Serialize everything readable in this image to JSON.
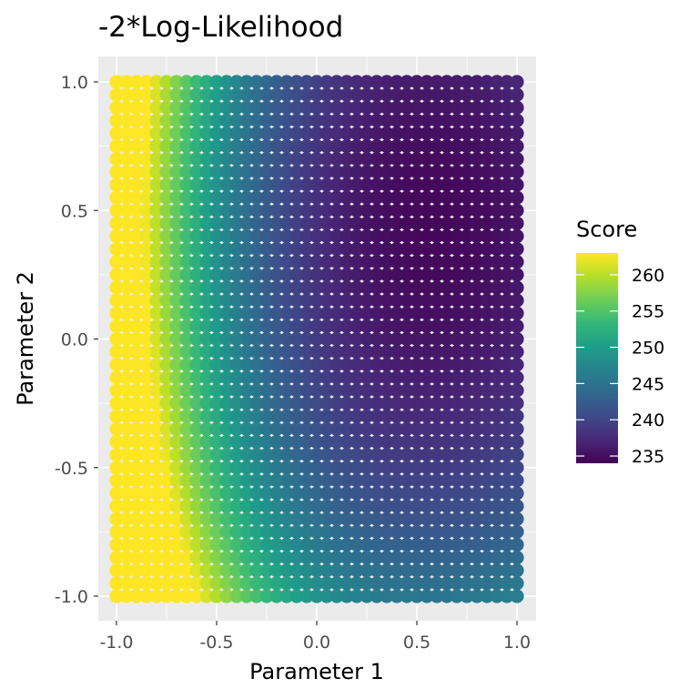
{
  "chart_data": {
    "type": "heatmap",
    "title": "-2*Log-Likelihood",
    "xlabel": "Parameter 1",
    "ylabel": "Parameter 2",
    "xlim": [
      -1.0,
      1.0
    ],
    "ylim": [
      -1.0,
      1.0
    ],
    "x_ticks": [
      "-1.0",
      "-0.5",
      "0.0",
      "0.5",
      "1.0"
    ],
    "y_ticks": [
      "-1.0",
      "-0.5",
      "0.0",
      "0.5",
      "1.0"
    ],
    "grid": true,
    "grid_x": {
      "start": -1.0,
      "stop": 1.0,
      "step": 0.05
    },
    "grid_y": {
      "start": -1.0,
      "stop": 1.0,
      "step": 0.05
    },
    "score_range": [
      234,
      263
    ],
    "minimum": {
      "x": 0.6,
      "y": 0.45,
      "score": 234.5
    },
    "colormap": "viridis",
    "legend": {
      "title": "Score",
      "placement": "right",
      "ticks": [
        "235",
        "240",
        "245",
        "250",
        "255",
        "260"
      ]
    }
  }
}
